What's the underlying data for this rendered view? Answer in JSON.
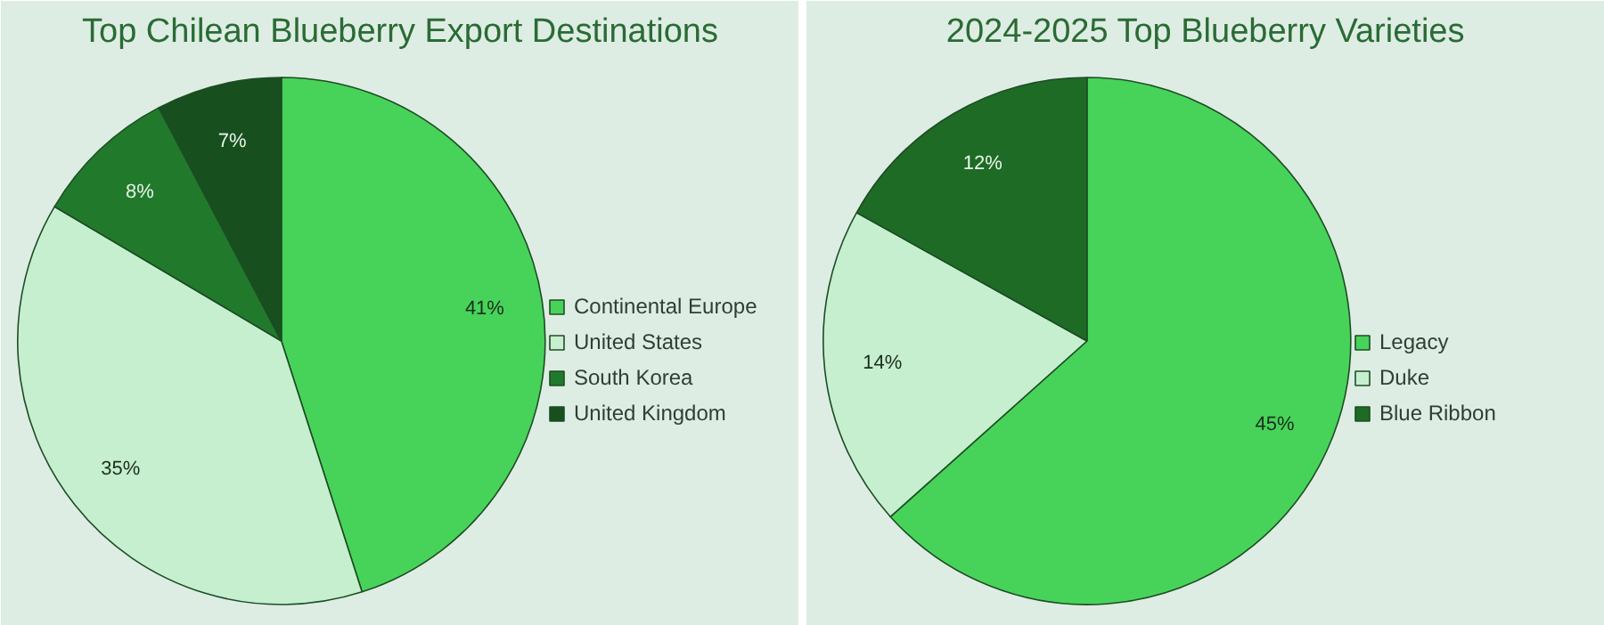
{
  "chart_data": [
    {
      "type": "pie",
      "title": "Top Chilean Blueberry Export Destinations",
      "categories": [
        "Continental Europe",
        "United States",
        "South Korea",
        "United Kingdom"
      ],
      "values": [
        41,
        35,
        8,
        7
      ],
      "colors": [
        "#47d35a",
        "#c6efcf",
        "#217a2b",
        "#174f1e"
      ],
      "value_labels": [
        "41%",
        "35%",
        "8%",
        "7%"
      ],
      "legend": "right"
    },
    {
      "type": "pie",
      "title": "2024-2025 Top Blueberry Varieties",
      "categories": [
        "Legacy",
        "Duke",
        "Blue Ribbon"
      ],
      "values": [
        45,
        14,
        12
      ],
      "colors": [
        "#47d35a",
        "#c6efcf",
        "#1d6b25"
      ],
      "value_labels": [
        "45%",
        "14%",
        "12%"
      ],
      "legend": "right"
    }
  ]
}
